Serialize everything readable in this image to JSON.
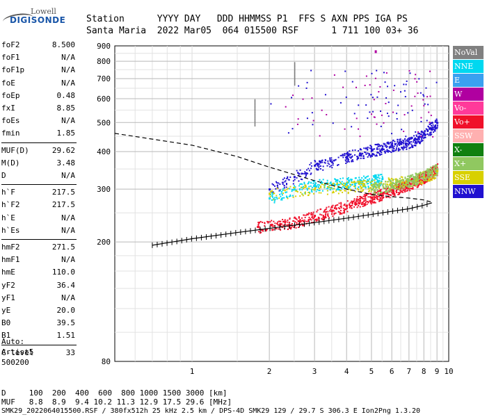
{
  "logo": {
    "line1": "Lowell",
    "line2": "DIGISONDE"
  },
  "header": {
    "row1": "Station      YYYY DAY   DDD HHMMSS P1  FFS S AXN PPS IGA PS",
    "row2": "Santa Maria  2022 Mar05  064 015500 RSF      1 711 100 03+ 36"
  },
  "params": [
    [
      {
        "k": "foF2",
        "v": "8.500"
      },
      {
        "k": "foF1",
        "v": "N/A"
      },
      {
        "k": "foF1p",
        "v": "N/A"
      },
      {
        "k": "foE",
        "v": "N/A"
      },
      {
        "k": "foEp",
        "v": "0.48"
      },
      {
        "k": "fxI",
        "v": "8.85"
      },
      {
        "k": "foEs",
        "v": "N/A"
      },
      {
        "k": "fmin",
        "v": "1.85"
      }
    ],
    [
      {
        "k": "MUF(D)",
        "v": "29.62"
      },
      {
        "k": "M(D)",
        "v": "3.48"
      },
      {
        "k": "D",
        "v": "N/A"
      }
    ],
    [
      {
        "k": "h`F",
        "v": "217.5"
      },
      {
        "k": "h`F2",
        "v": "217.5"
      },
      {
        "k": "h`E",
        "v": "N/A"
      },
      {
        "k": "h`Es",
        "v": "N/A"
      }
    ],
    [
      {
        "k": "hmF2",
        "v": "271.5"
      },
      {
        "k": "hmF1",
        "v": "N/A"
      },
      {
        "k": "hmE",
        "v": "110.0"
      },
      {
        "k": "yF2",
        "v": "36.4"
      },
      {
        "k": "yF1",
        "v": "N/A"
      },
      {
        "k": "yE",
        "v": "20.0"
      },
      {
        "k": "B0",
        "v": "39.5"
      },
      {
        "k": "B1",
        "v": "1.51"
      }
    ],
    [
      {
        "k": "C-level",
        "v": "33"
      }
    ]
  ],
  "auto": {
    "l1": "Auto:",
    "l2": "Artist5",
    "l3": "500200"
  },
  "legend": [
    {
      "name": "NoVal",
      "color": "#808080"
    },
    {
      "name": "NNE",
      "color": "#00d8f0"
    },
    {
      "name": "E",
      "color": "#3aa0f0"
    },
    {
      "name": "W",
      "color": "#b000a0"
    },
    {
      "name": "Vo-",
      "color": "#ff3a9a"
    },
    {
      "name": "Vo+",
      "color": "#f0102a"
    },
    {
      "name": "SSW",
      "color": "#ffb0b0"
    },
    {
      "name": "X-",
      "color": "#108010"
    },
    {
      "name": "X+",
      "color": "#90c860"
    },
    {
      "name": "SSE",
      "color": "#d8d000"
    },
    {
      "name": "NNW",
      "color": "#2010d0"
    }
  ],
  "footer": {
    "row1": "D     100  200  400  600  800 1000 1500 3000 [km]",
    "row2": "MUF   8.8  8.9  9.4 10.2 11.3 12.9 17.5 29.6 [MHz]",
    "row3": "SMK29_2022064015500.RSF / 380fx512h 25 kHz 2.5 km / DPS-4D SMK29 129 / 29.7 S 306.3 E Ion2Png 1.3.20"
  },
  "chart_data": {
    "type": "scatter",
    "xlim": [
      0.5,
      10
    ],
    "ylim": [
      80,
      900
    ],
    "x_scale": "log",
    "y_scale": "log",
    "x_ticks": [
      "1",
      "2",
      "3",
      "4",
      "5",
      "6",
      "7",
      "8",
      "9",
      "10"
    ],
    "y_ticks": [
      {
        "v": 80,
        "label": "80"
      },
      {
        "v": 200,
        "label": "200"
      },
      {
        "v": 300,
        "label": "300"
      },
      {
        "v": 400,
        "label": "400"
      },
      {
        "v": 500,
        "label": "500"
      },
      {
        "v": 600,
        "label": "600"
      },
      {
        "v": 700,
        "label": "700"
      },
      {
        "v": 800,
        "label": "800"
      },
      {
        "v": 900,
        "label": "900"
      }
    ],
    "grid": true,
    "legend_position": "right",
    "traces": [
      {
        "name": "Vo+",
        "color": "#f0102a",
        "points": [
          [
            1.8,
            225
          ],
          [
            2.2,
            230
          ],
          [
            2.6,
            235
          ],
          [
            3.0,
            245
          ],
          [
            3.5,
            255
          ],
          [
            4.0,
            265
          ],
          [
            4.5,
            275
          ],
          [
            5.0,
            282
          ],
          [
            5.5,
            290
          ],
          [
            6.0,
            298
          ],
          [
            6.5,
            305
          ],
          [
            7.0,
            312
          ],
          [
            7.5,
            320
          ],
          [
            8.0,
            330
          ],
          [
            8.5,
            340
          ],
          [
            9.0,
            350
          ]
        ]
      },
      {
        "name": "NNW",
        "color": "#2010d0",
        "points": [
          [
            2.0,
            300
          ],
          [
            2.5,
            330
          ],
          [
            3.0,
            360
          ],
          [
            3.5,
            370
          ],
          [
            4.0,
            385
          ],
          [
            4.5,
            395
          ],
          [
            5.0,
            405
          ],
          [
            5.5,
            410
          ],
          [
            6.0,
            420
          ],
          [
            6.5,
            425
          ],
          [
            7.0,
            430
          ],
          [
            7.5,
            440
          ],
          [
            8.0,
            460
          ],
          [
            8.5,
            480
          ],
          [
            9.0,
            500
          ]
        ]
      },
      {
        "name": "NNE",
        "color": "#00d8f0",
        "points": [
          [
            2.0,
            280
          ],
          [
            2.5,
            300
          ],
          [
            3.0,
            310
          ],
          [
            3.5,
            312
          ],
          [
            4.0,
            315
          ],
          [
            4.5,
            318
          ],
          [
            5.0,
            320
          ],
          [
            5.5,
            325
          ]
        ]
      },
      {
        "name": "SSE",
        "color": "#d8d000",
        "points": [
          [
            2.0,
            290
          ],
          [
            3.0,
            300
          ],
          [
            4.0,
            305
          ],
          [
            5.0,
            310
          ],
          [
            6.0,
            315
          ],
          [
            7.0,
            320
          ],
          [
            8.0,
            330
          ],
          [
            9.0,
            345
          ]
        ]
      },
      {
        "name": "X+",
        "color": "#90c860",
        "points": [
          [
            5.0,
            300
          ],
          [
            6.0,
            310
          ],
          [
            7.0,
            320
          ],
          [
            8.0,
            335
          ],
          [
            9.0,
            350
          ]
        ]
      }
    ],
    "virtual_trace": [
      [
        0.7,
        195
      ],
      [
        1.0,
        205
      ],
      [
        1.5,
        215
      ],
      [
        2.0,
        222
      ],
      [
        3.0,
        232
      ],
      [
        4.0,
        240
      ],
      [
        5.0,
        247
      ],
      [
        6.0,
        253
      ],
      [
        7.0,
        258
      ],
      [
        8.0,
        265
      ],
      [
        8.6,
        270
      ]
    ],
    "profile_curve": [
      [
        0.5,
        460
      ],
      [
        1.0,
        420
      ],
      [
        1.5,
        385
      ],
      [
        2.0,
        355
      ],
      [
        3.0,
        320
      ],
      [
        4.0,
        300
      ],
      [
        5.0,
        288
      ],
      [
        6.0,
        283
      ],
      [
        7.0,
        280
      ],
      [
        8.0,
        276
      ],
      [
        8.5,
        272
      ]
    ],
    "markers": [
      {
        "x": 5.18,
        "y": 870,
        "color": "#b000a0"
      }
    ]
  }
}
